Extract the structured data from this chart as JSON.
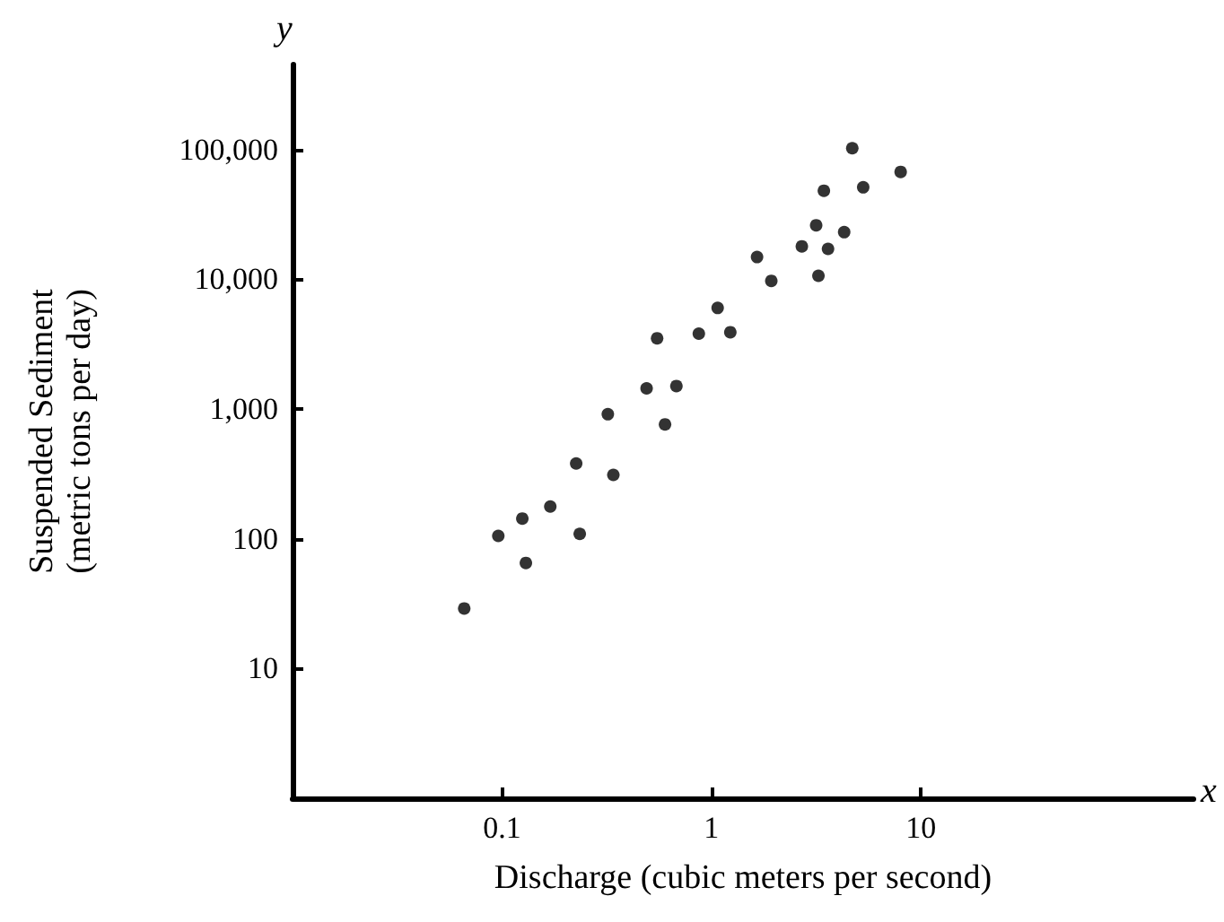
{
  "chart_data": {
    "type": "scatter",
    "xlabel": "Discharge (cubic meters per second)",
    "ylabel": "Suspended Sediment\n(metric tons per day)",
    "annotations": [
      "x",
      "y"
    ],
    "x": [
      0.066,
      0.096,
      0.13,
      0.125,
      0.17,
      0.235,
      0.226,
      0.32,
      0.34,
      0.49,
      0.55,
      0.6,
      0.68,
      0.87,
      1.07,
      1.23,
      1.65,
      1.93,
      2.7,
      3.16,
      3.24,
      3.44,
      3.6,
      4.3,
      4.7,
      5.3,
      8.0
    ],
    "series": [
      {
        "color": "#000000",
        "values": [
          29,
          105,
          65,
          143,
          177,
          109,
          380,
          910,
          310,
          1440,
          3500,
          760,
          1500,
          3800,
          6000,
          3900,
          14800,
          9700,
          17900,
          26000,
          10600,
          48000,
          17100,
          23000,
          102000,
          51000,
          67000
        ]
      }
    ],
    "log": "xy",
    "xlim": [
      0.01,
      200
    ],
    "xticks": [
      0.1,
      1,
      10
    ],
    "ylim": [
      1,
      450000
    ],
    "yticks": [
      10,
      100,
      {
        "value": 1000,
        "label": "1,000"
      },
      {
        "value": 10000,
        "label": "10,000"
      },
      {
        "value": 100000,
        "label": "100,000"
      }
    ],
    "grid": false,
    "marker": "circle"
  }
}
